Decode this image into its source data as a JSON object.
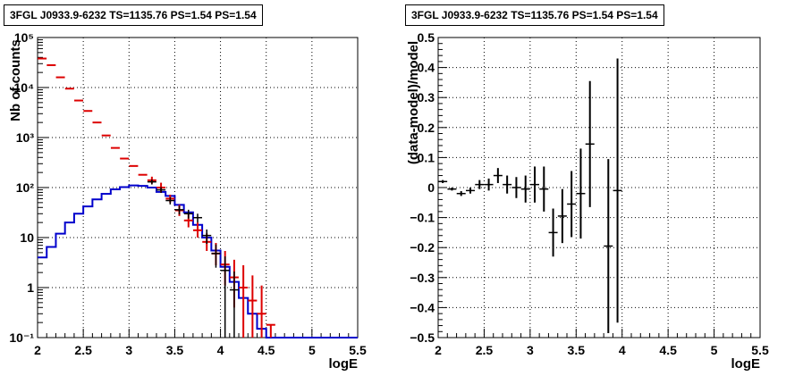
{
  "chart_data": [
    {
      "type": "line",
      "title": "3FGL J0933.9-6232 TS=1135.76 PS=1.54 PS=1.54",
      "xlabel": "logE",
      "ylabel": "Nb of counts",
      "xlim": [
        2,
        5.5
      ],
      "ylim": [
        0.1,
        100000
      ],
      "yscale": "log",
      "grid": true,
      "x_ticks": [
        "2",
        "2.5",
        "3",
        "3.5",
        "4",
        "4.5",
        "5",
        "5.5"
      ],
      "y_ticks": [
        "10⁻¹",
        "1",
        "10",
        "10²",
        "10³",
        "10⁴",
        "10⁵"
      ],
      "series": [
        {
          "role": "total-model-points",
          "color": "#dd0000",
          "x": [
            2.05,
            2.15,
            2.25,
            2.35,
            2.45,
            2.55,
            2.65,
            2.75,
            2.85,
            2.95,
            3.05,
            3.15,
            3.25,
            3.35,
            3.45,
            3.55,
            3.65,
            3.75,
            3.85,
            3.95,
            4.05,
            4.15,
            4.25,
            4.35,
            4.45,
            4.55
          ],
          "y": [
            38000,
            28000,
            16000,
            9500,
            5500,
            3400,
            2000,
            1100,
            620,
            380,
            270,
            180,
            140,
            100,
            60,
            35,
            22,
            14,
            8.2,
            4.8,
            2.9,
            1.6,
            1.0,
            0.55,
            0.3,
            0.18
          ],
          "err_low": [
            0,
            0,
            0,
            0,
            0,
            0,
            0,
            0,
            0,
            0,
            0,
            0,
            20,
            20,
            10,
            8,
            6,
            4,
            2.8,
            2.0,
            1.8,
            1.2,
            0.9,
            0.5,
            0.3,
            0.18
          ],
          "err_high": [
            0,
            0,
            0,
            0,
            0,
            0,
            0,
            0,
            0,
            0,
            0,
            0,
            25,
            25,
            12,
            10,
            8,
            6,
            4.0,
            3.0,
            2.5,
            2.0,
            1.8,
            1.2,
            0.8,
            0.0
          ]
        },
        {
          "role": "data-points",
          "color": "#000000",
          "x": [
            3.25,
            3.35,
            3.45,
            3.55,
            3.65,
            3.75,
            3.85,
            3.95,
            4.05,
            4.15
          ],
          "y": [
            130,
            90,
            55,
            36,
            30,
            25,
            11,
            4.8,
            2.2,
            0.9
          ],
          "err_low": [
            15,
            12,
            9,
            7,
            6,
            5,
            3.5,
            2.3,
            2.2,
            0.9
          ],
          "err_high": [
            15,
            12,
            9,
            7,
            6,
            5,
            3.5,
            2.5,
            2.0,
            1.2
          ]
        },
        {
          "role": "source-model-histogram",
          "color": "#0000cc",
          "bin_edges": [
            2.0,
            2.1,
            2.2,
            2.3,
            2.4,
            2.5,
            2.6,
            2.7,
            2.8,
            2.9,
            3.0,
            3.1,
            3.2,
            3.3,
            3.4,
            3.5,
            3.6,
            3.7,
            3.8,
            3.9,
            4.0,
            4.1,
            4.2,
            4.3,
            4.4,
            4.5,
            5.5
          ],
          "y": [
            4,
            6.5,
            12,
            20,
            30,
            42,
            58,
            75,
            92,
            102,
            110,
            108,
            100,
            82,
            68,
            45,
            32,
            18,
            10,
            5.5,
            2.6,
            1.3,
            0.62,
            0.3,
            0.15,
            0.1
          ]
        }
      ]
    },
    {
      "type": "scatter",
      "title": "3FGL J0933.9-6232 TS=1135.76 PS=1.54 PS=1.54",
      "xlabel": "logE",
      "ylabel": "(data-model)/model",
      "xlim": [
        2,
        5.5
      ],
      "ylim": [
        -0.5,
        0.5
      ],
      "grid": true,
      "x_ticks": [
        "2",
        "2.5",
        "3",
        "3.5",
        "4",
        "4.5",
        "5",
        "5.5"
      ],
      "y_ticks": [
        "−0.5",
        "−0.4",
        "−0.3",
        "−0.2",
        "−0.1",
        "0",
        "0.1",
        "0.2",
        "0.3",
        "0.4",
        "0.5"
      ],
      "series": [
        {
          "role": "residuals",
          "color": "#000000",
          "x": [
            2.05,
            2.15,
            2.25,
            2.35,
            2.45,
            2.55,
            2.65,
            2.75,
            2.85,
            2.95,
            3.05,
            3.15,
            3.25,
            3.35,
            3.45,
            3.55,
            3.65,
            3.85,
            3.95
          ],
          "y": [
            0.02,
            -0.005,
            -0.02,
            -0.01,
            0.01,
            0.01,
            0.04,
            0.01,
            0.0,
            -0.005,
            0.01,
            -0.005,
            -0.15,
            -0.095,
            -0.055,
            -0.02,
            0.145,
            -0.195,
            -0.01
          ],
          "yerr": [
            0.005,
            0.005,
            0.008,
            0.01,
            0.015,
            0.02,
            0.025,
            0.03,
            0.035,
            0.045,
            0.06,
            0.075,
            0.08,
            0.09,
            0.11,
            0.15,
            0.21,
            0.29,
            0.44
          ]
        }
      ]
    }
  ]
}
